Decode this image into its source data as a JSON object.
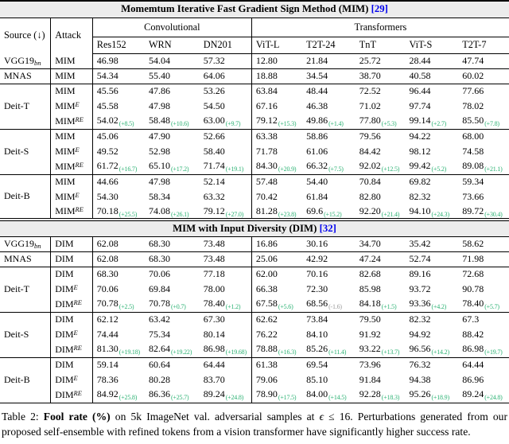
{
  "accent_colors": {
    "citation_blue": "#0000ee",
    "delta_green": "#2bb273",
    "delta_gray": "#9a9a9a",
    "section_header_bg": "#ececec"
  },
  "table": {
    "header": {
      "source_label": "Source (↓)",
      "attack_label": "Attack",
      "conv_group": "Convolutional",
      "trans_group": "Transformers",
      "models": [
        "Res152",
        "WRN",
        "DN201",
        "ViT-L",
        "T2T-24",
        "TnT",
        "ViT-S",
        "T2T-7"
      ]
    },
    "sections": [
      {
        "title": "Momemtum Iterative Fast Gradient Sign Method (MIM)",
        "cite": "[29]",
        "col_headers": true,
        "groups": [
          {
            "source": "VGG19",
            "source_sub": "bn",
            "rows": [
              {
                "attack": "MIM",
                "cells": [
                  "46.98",
                  "54.04",
                  "57.32",
                  "12.80",
                  "21.84",
                  "25.72",
                  "28.44",
                  "47.74"
                ]
              }
            ]
          },
          {
            "source": "MNAS",
            "rows": [
              {
                "attack": "MIM",
                "cells": [
                  "54.34",
                  "55.40",
                  "64.06",
                  "18.88",
                  "34.54",
                  "38.70",
                  "40.58",
                  "60.02"
                ]
              }
            ]
          },
          {
            "source": "Deit-T",
            "rows": [
              {
                "attack": "MIM",
                "cells": [
                  "45.56",
                  "47.86",
                  "53.26",
                  "63.84",
                  "48.44",
                  "72.52",
                  "96.44",
                  "77.66"
                ]
              },
              {
                "attack": "MIM",
                "sup": "E",
                "cells": [
                  "45.58",
                  "47.98",
                  "54.50",
                  "67.16",
                  "46.38",
                  "71.02",
                  "97.74",
                  "78.02"
                ]
              },
              {
                "attack": "MIM",
                "sup": "RE",
                "cells": [
                  {
                    "v": "54.02",
                    "d": "(+8.5)"
                  },
                  {
                    "v": "58.48",
                    "d": "(+10.6)"
                  },
                  {
                    "v": "63.00",
                    "d": "(+9.7)"
                  },
                  {
                    "v": "79.12",
                    "d": "(+15.3)"
                  },
                  {
                    "v": "49.86",
                    "d": "(+1.4)"
                  },
                  {
                    "v": "77.80",
                    "d": "(+5.3)"
                  },
                  {
                    "v": "99.14",
                    "d": "(+2.7)"
                  },
                  {
                    "v": "85.50",
                    "d": "(+7.8)"
                  }
                ]
              }
            ]
          },
          {
            "source": "Deit-S",
            "rows": [
              {
                "attack": "MIM",
                "cells": [
                  "45.06",
                  "47.90",
                  "52.66",
                  "63.38",
                  "58.86",
                  "79.56",
                  "94.22",
                  "68.00"
                ]
              },
              {
                "attack": "MIM",
                "sup": "E",
                "cells": [
                  "49.52",
                  "52.98",
                  "58.40",
                  "71.78",
                  "61.06",
                  "84.42",
                  "98.12",
                  "74.58"
                ]
              },
              {
                "attack": "MIM",
                "sup": "RE",
                "cells": [
                  {
                    "v": "61.72",
                    "d": "(+16.7)"
                  },
                  {
                    "v": "65.10",
                    "d": "(+17.2)"
                  },
                  {
                    "v": "71.74",
                    "d": "(+19.1)"
                  },
                  {
                    "v": "84.30",
                    "d": "(+20.9)"
                  },
                  {
                    "v": "66.32",
                    "d": "(+7.5)"
                  },
                  {
                    "v": "92.02",
                    "d": "(+12.5)"
                  },
                  {
                    "v": "99.42",
                    "d": "(+5.2)"
                  },
                  {
                    "v": "89.08",
                    "d": "(+21.1)"
                  }
                ]
              }
            ]
          },
          {
            "source": "Deit-B",
            "rows": [
              {
                "attack": "MIM",
                "cells": [
                  "44.66",
                  "47.98",
                  "52.14",
                  "57.48",
                  "54.40",
                  "70.84",
                  "69.82",
                  "59.34"
                ]
              },
              {
                "attack": "MIM",
                "sup": "E",
                "cells": [
                  "54.30",
                  "58.34",
                  "63.32",
                  "70.42",
                  "61.84",
                  "82.80",
                  "82.32",
                  "73.66"
                ]
              },
              {
                "attack": "MIM",
                "sup": "RE",
                "cells": [
                  {
                    "v": "70.18",
                    "d": "(+25.5)"
                  },
                  {
                    "v": "74.08",
                    "d": "(+26.1)"
                  },
                  {
                    "v": "79.12",
                    "d": "(+27.0)"
                  },
                  {
                    "v": "81.28",
                    "d": "(+23.8)"
                  },
                  {
                    "v": "69.6",
                    "d": "(+15.2)"
                  },
                  {
                    "v": "92.20",
                    "d": "(+21.4)"
                  },
                  {
                    "v": "94.10",
                    "d": "(+24.3)"
                  },
                  {
                    "v": "89.72",
                    "d": "(+30.4)"
                  }
                ]
              }
            ]
          }
        ]
      },
      {
        "title": "MIM with Input Diversity (DIM)",
        "cite": "[32]",
        "col_headers": false,
        "groups": [
          {
            "source": "VGG19",
            "source_sub": "bn",
            "rows": [
              {
                "attack": "DIM",
                "cells": [
                  "62.08",
                  "68.30",
                  "73.48",
                  "16.86",
                  "30.16",
                  "34.70",
                  "35.42",
                  "58.62"
                ]
              }
            ]
          },
          {
            "source": "MNAS",
            "rows": [
              {
                "attack": "DIM",
                "cells": [
                  "62.08",
                  "68.30",
                  "73.48",
                  "25.06",
                  "42.92",
                  "47.24",
                  "52.74",
                  "71.98"
                ]
              }
            ]
          },
          {
            "source": "Deit-T",
            "rows": [
              {
                "attack": "DIM",
                "cells": [
                  "68.30",
                  "70.06",
                  "77.18",
                  "62.00",
                  "70.16",
                  "82.68",
                  "89.16",
                  "72.68"
                ]
              },
              {
                "attack": "DIM",
                "sup": "E",
                "cells": [
                  "70.06",
                  "69.84",
                  "78.00",
                  "66.38",
                  "72.30",
                  "85.98",
                  "93.72",
                  "90.78"
                ]
              },
              {
                "attack": "DIM",
                "sup": "RE",
                "cells": [
                  {
                    "v": "70.78",
                    "d": "(+2.5)"
                  },
                  {
                    "v": "70.78",
                    "d": "(+0.7)"
                  },
                  {
                    "v": "78.40",
                    "d": "(+1.2)"
                  },
                  {
                    "v": "67.58",
                    "d": "(+5.6)"
                  },
                  {
                    "v": "68.56",
                    "d": "(-1.6)",
                    "dc": "gray"
                  },
                  {
                    "v": "84.18",
                    "d": "(+1.5)"
                  },
                  {
                    "v": "93.36",
                    "d": "(+4.2)"
                  },
                  {
                    "v": "78.40",
                    "d": "(+5.7)"
                  }
                ]
              }
            ]
          },
          {
            "source": "Deit-S",
            "rows": [
              {
                "attack": "DIM",
                "cells": [
                  "62.12",
                  "63.42",
                  "67.30",
                  "62.62",
                  "73.84",
                  "79.50",
                  "82.32",
                  "67.3"
                ]
              },
              {
                "attack": "DIM",
                "sup": "E",
                "cells": [
                  "74.44",
                  "75.34",
                  "80.14",
                  "76.22",
                  "84.10",
                  "91.92",
                  "94.92",
                  "88.42"
                ]
              },
              {
                "attack": "DIM",
                "sup": "RE",
                "cells": [
                  {
                    "v": "81.30",
                    "d": "(+19.18)"
                  },
                  {
                    "v": "82.64",
                    "d": "(+19.22)"
                  },
                  {
                    "v": "86.98",
                    "d": "(+19.68)"
                  },
                  {
                    "v": "78.88",
                    "d": "(+16.3)"
                  },
                  {
                    "v": "85.26",
                    "d": "(+11.4)"
                  },
                  {
                    "v": "93.22",
                    "d": "(+13.7)"
                  },
                  {
                    "v": "96.56",
                    "d": "(+14.2)"
                  },
                  {
                    "v": "86.98",
                    "d": "(+19.7)"
                  }
                ]
              }
            ]
          },
          {
            "source": "Deit-B",
            "rows": [
              {
                "attack": "DIM",
                "cells": [
                  "59.14",
                  "60.64",
                  "64.44",
                  "61.38",
                  "69.54",
                  "73.96",
                  "76.32",
                  "64.44"
                ]
              },
              {
                "attack": "DIM",
                "sup": "E",
                "cells": [
                  "78.36",
                  "80.28",
                  "83.70",
                  "79.06",
                  "85.10",
                  "91.84",
                  "94.38",
                  "86.96"
                ]
              },
              {
                "attack": "DIM",
                "sup": "RE",
                "cells": [
                  {
                    "v": "84.92",
                    "d": "(+25.8)"
                  },
                  {
                    "v": "86.36",
                    "d": "(+25.7)"
                  },
                  {
                    "v": "89.24",
                    "d": "(+24.8)"
                  },
                  {
                    "v": "78.90",
                    "d": "(+17.5)"
                  },
                  {
                    "v": "84.00",
                    "d": "(+14.5)"
                  },
                  {
                    "v": "92.28",
                    "d": "(+18.3)"
                  },
                  {
                    "v": "95.26",
                    "d": "(+18.9)"
                  },
                  {
                    "v": "89.24",
                    "d": "(+24.8)"
                  }
                ]
              }
            ]
          }
        ]
      }
    ]
  },
  "caption": {
    "parts": [
      {
        "t": "Table 2: ",
        "s": "normal"
      },
      {
        "t": "Fool rate (%)",
        "s": "bold"
      },
      {
        "t": " on 5k ImageNet val. adversarial samples at ",
        "s": "normal"
      },
      {
        "t": "ϵ",
        "s": "italic"
      },
      {
        "t": " ≤ 16. Perturbations generated from our proposed self-ensemble with refined tokens from a vision transformer have significantly higher success rate.",
        "s": "normal"
      }
    ]
  }
}
